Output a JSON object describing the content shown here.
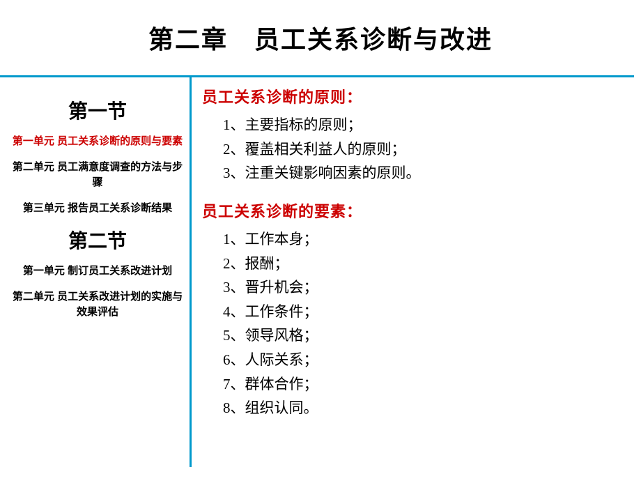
{
  "title": "第二章　员工关系诊断与改进",
  "sidebar": {
    "section1": {
      "title": "第一节",
      "units": [
        "第一单元  员工关系诊断的原则与要素",
        "第二单元  员工满意度调查的方法与步骤",
        "第三单元  报告员工关系诊断结果"
      ]
    },
    "section2": {
      "title": "第二节",
      "units": [
        "第一单元  制订员工关系改进计划",
        "第二单元  员工关系改进计划的实施与效果评估"
      ]
    }
  },
  "content": {
    "group1": {
      "heading": "员工关系诊断的原则：",
      "items": [
        "1、主要指标的原则；",
        "2、覆盖相关利益人的原则；",
        "3、注重关键影响因素的原则。"
      ]
    },
    "group2": {
      "heading": "员工关系诊断的要素：",
      "items": [
        "1、工作本身；",
        "2、报酬；",
        "3、晋升机会；",
        "4、工作条件；",
        "5、领导风格；",
        "6、人际关系；",
        "7、群体合作；",
        "8、组织认同。"
      ]
    }
  },
  "colors": {
    "rule": "#0099cc",
    "accent": "#cc0000",
    "text": "#000000",
    "bg": "#ffffff"
  }
}
